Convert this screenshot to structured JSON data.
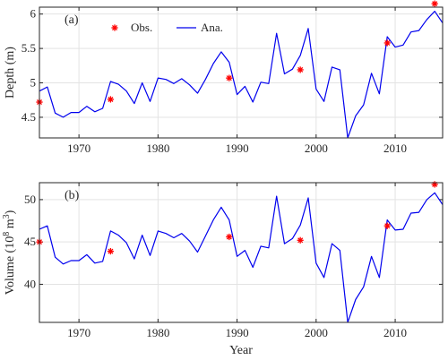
{
  "colors": {
    "analysis": "#0000ee",
    "observed": "#ff0000"
  },
  "chart_data": [
    {
      "type": "line",
      "panel_label": "(a)",
      "ylabel": "Depth (m)",
      "xlim": [
        1965,
        2016
      ],
      "ylim": [
        4.2,
        6.1
      ],
      "xticks": [
        1970,
        1980,
        1990,
        2000,
        2010
      ],
      "yticks": [
        4.5,
        5,
        5.5,
        6
      ],
      "grid": true,
      "legend": {
        "placement": "top-left",
        "entries": [
          "Obs.",
          "Ana."
        ]
      },
      "series": [
        {
          "name": "Ana.",
          "style": "line",
          "x": [
            1965,
            1966,
            1967,
            1968,
            1969,
            1970,
            1971,
            1972,
            1973,
            1974,
            1975,
            1976,
            1977,
            1978,
            1979,
            1980,
            1981,
            1982,
            1983,
            1984,
            1985,
            1986,
            1987,
            1988,
            1989,
            1990,
            1991,
            1992,
            1993,
            1994,
            1995,
            1996,
            1997,
            1998,
            1999,
            2000,
            2001,
            2002,
            2003,
            2004,
            2005,
            2006,
            2007,
            2008,
            2009,
            2010,
            2011,
            2012,
            2013,
            2014,
            2015,
            2016
          ],
          "values": [
            4.88,
            4.94,
            4.56,
            4.5,
            4.57,
            4.57,
            4.66,
            4.58,
            4.63,
            5.02,
            4.98,
            4.88,
            4.7,
            5.0,
            4.73,
            5.07,
            5.05,
            4.99,
            5.06,
            4.97,
            4.85,
            5.05,
            5.28,
            5.45,
            5.3,
            4.83,
            4.95,
            4.72,
            5.01,
            4.99,
            5.72,
            5.13,
            5.2,
            5.4,
            5.79,
            4.91,
            4.73,
            5.23,
            5.19,
            4.2,
            4.52,
            4.68,
            5.14,
            4.84,
            5.67,
            5.52,
            5.55,
            5.74,
            5.76,
            5.92,
            6.04,
            5.87
          ]
        },
        {
          "name": "Obs.",
          "style": "marker",
          "x": [
            1965,
            1974,
            1989,
            1998,
            2009,
            2015
          ],
          "values": [
            4.72,
            4.76,
            5.07,
            5.19,
            5.58,
            6.15
          ]
        }
      ]
    },
    {
      "type": "line",
      "panel_label": "(b)",
      "xlabel": "Year",
      "ylabel_main": "Volume (10",
      "ylabel_sup1": "8",
      "ylabel_mid": " m",
      "ylabel_sup2": "3",
      "ylabel_end": ")",
      "xlim": [
        1965,
        2016
      ],
      "ylim": [
        35.5,
        52
      ],
      "xticks": [
        1970,
        1980,
        1990,
        2000,
        2010
      ],
      "yticks": [
        40,
        45,
        50
      ],
      "grid": true,
      "series": [
        {
          "name": "Ana.",
          "style": "line",
          "x": [
            1965,
            1966,
            1967,
            1968,
            1969,
            1970,
            1971,
            1972,
            1973,
            1974,
            1975,
            1976,
            1977,
            1978,
            1979,
            1980,
            1981,
            1982,
            1983,
            1984,
            1985,
            1986,
            1987,
            1988,
            1989,
            1990,
            1991,
            1992,
            1993,
            1994,
            1995,
            1996,
            1997,
            1998,
            1999,
            2000,
            2001,
            2002,
            2003,
            2004,
            2005,
            2006,
            2007,
            2008,
            2009,
            2010,
            2011,
            2012,
            2013,
            2014,
            2015,
            2016
          ],
          "values": [
            46.5,
            46.9,
            43.2,
            42.4,
            42.8,
            42.8,
            43.5,
            42.5,
            42.7,
            46.3,
            45.8,
            44.9,
            43.0,
            45.8,
            43.4,
            46.3,
            46.0,
            45.5,
            46.0,
            45.1,
            43.8,
            45.7,
            47.6,
            49.1,
            47.6,
            43.3,
            44.0,
            42.0,
            44.5,
            44.3,
            50.4,
            44.8,
            45.4,
            47.0,
            50.2,
            42.5,
            40.8,
            44.8,
            44.0,
            35.5,
            38.2,
            39.7,
            43.3,
            40.8,
            47.6,
            46.4,
            46.5,
            48.4,
            48.5,
            50.0,
            50.8,
            49.4
          ]
        },
        {
          "name": "Obs.",
          "style": "marker",
          "x": [
            1965,
            1974,
            1989,
            1998,
            2009,
            2015
          ],
          "values": [
            45.0,
            43.9,
            45.6,
            45.2,
            46.9,
            51.8
          ]
        }
      ]
    }
  ]
}
